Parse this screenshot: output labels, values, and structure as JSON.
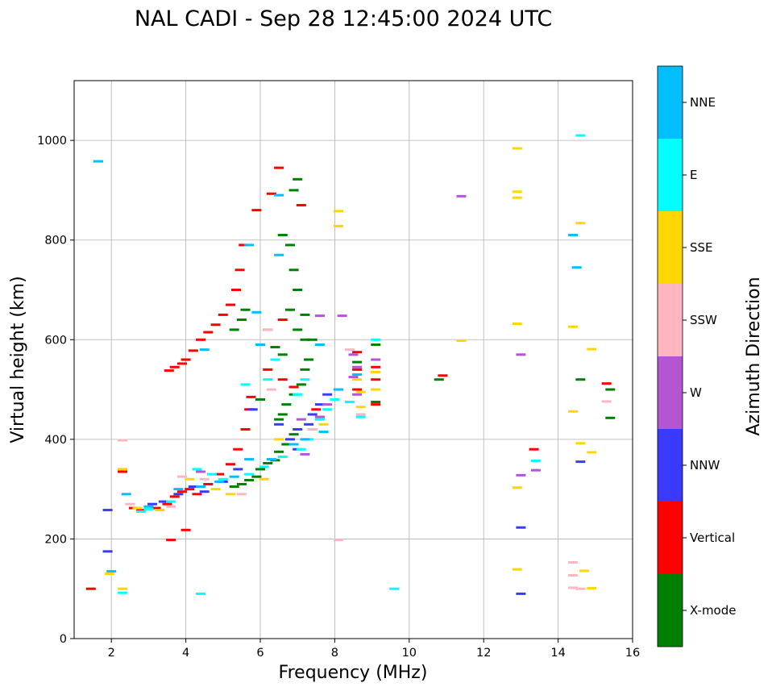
{
  "chart_data": {
    "type": "scatter",
    "title": "NAL CADI - Sep 28 12:45:00 2024 UTC",
    "xlabel": "Frequency (MHz)",
    "ylabel": "Virtual height (km)",
    "xlim": [
      1,
      16
    ],
    "ylim": [
      0,
      1120
    ],
    "xticks": [
      2,
      4,
      6,
      8,
      10,
      12,
      14,
      16
    ],
    "yticks": [
      0,
      200,
      400,
      600,
      800,
      1000
    ],
    "grid": true,
    "colorbar": {
      "label": "Azimuth Direction",
      "categories": [
        {
          "name": "X-mode",
          "color": "#008000"
        },
        {
          "name": "Vertical",
          "color": "#ff0000"
        },
        {
          "name": "NNW",
          "color": "#3a3aff"
        },
        {
          "name": "W",
          "color": "#b455d4"
        },
        {
          "name": "SSW",
          "color": "#ffb6c1"
        },
        {
          "name": "SSE",
          "color": "#ffd700"
        },
        {
          "name": "E",
          "color": "#00ffff"
        },
        {
          "name": "NNE",
          "color": "#00bfff"
        }
      ]
    },
    "series": [
      {
        "name": "Vertical",
        "points": [
          [
            1.45,
            100
          ],
          [
            2.3,
            335
          ],
          [
            2.6,
            262
          ],
          [
            2.8,
            258
          ],
          [
            3.2,
            262
          ],
          [
            3.5,
            270
          ],
          [
            3.7,
            285
          ],
          [
            3.9,
            295
          ],
          [
            4.1,
            300
          ],
          [
            4.3,
            290
          ],
          [
            4.6,
            310
          ],
          [
            4.9,
            330
          ],
          [
            5.2,
            350
          ],
          [
            5.4,
            380
          ],
          [
            5.6,
            420
          ],
          [
            5.7,
            460
          ],
          [
            5.75,
            485
          ],
          [
            3.55,
            538
          ],
          [
            3.7,
            545
          ],
          [
            3.9,
            552
          ],
          [
            4.0,
            560
          ],
          [
            4.2,
            578
          ],
          [
            4.4,
            600
          ],
          [
            4.6,
            615
          ],
          [
            4.8,
            630
          ],
          [
            5.0,
            650
          ],
          [
            5.2,
            670
          ],
          [
            5.35,
            700
          ],
          [
            5.45,
            740
          ],
          [
            5.55,
            790
          ],
          [
            5.9,
            860
          ],
          [
            6.3,
            893
          ],
          [
            6.5,
            945
          ],
          [
            6.2,
            540
          ],
          [
            6.6,
            520
          ],
          [
            6.9,
            505
          ],
          [
            6.6,
            640
          ],
          [
            7.1,
            870
          ],
          [
            7.5,
            460
          ],
          [
            8.6,
            500
          ],
          [
            8.6,
            540
          ],
          [
            8.6,
            575
          ],
          [
            9.1,
            470
          ],
          [
            9.1,
            520
          ],
          [
            9.1,
            545
          ],
          [
            10.9,
            528
          ],
          [
            13.35,
            380
          ],
          [
            15.3,
            512
          ],
          [
            4.0,
            218
          ],
          [
            3.6,
            198
          ]
        ]
      },
      {
        "name": "X-mode",
        "points": [
          [
            5.3,
            305
          ],
          [
            5.5,
            310
          ],
          [
            5.7,
            318
          ],
          [
            5.9,
            325
          ],
          [
            6.0,
            340
          ],
          [
            6.2,
            352
          ],
          [
            6.4,
            358
          ],
          [
            6.5,
            375
          ],
          [
            6.7,
            390
          ],
          [
            6.9,
            410
          ],
          [
            6.5,
            440
          ],
          [
            6.7,
            470
          ],
          [
            6.9,
            490
          ],
          [
            7.1,
            510
          ],
          [
            7.2,
            540
          ],
          [
            7.3,
            560
          ],
          [
            7.2,
            600
          ],
          [
            7.0,
            620
          ],
          [
            6.8,
            660
          ],
          [
            7.0,
            700
          ],
          [
            6.9,
            740
          ],
          [
            6.8,
            790
          ],
          [
            6.6,
            810
          ],
          [
            6.9,
            900
          ],
          [
            7.0,
            922
          ],
          [
            5.3,
            620
          ],
          [
            5.5,
            640
          ],
          [
            5.6,
            660
          ],
          [
            6.4,
            585
          ],
          [
            6.6,
            570
          ],
          [
            7.2,
            650
          ],
          [
            7.4,
            600
          ],
          [
            8.6,
            555
          ],
          [
            9.1,
            590
          ],
          [
            9.1,
            475
          ],
          [
            10.8,
            520
          ],
          [
            14.6,
            520
          ],
          [
            15.4,
            500
          ],
          [
            15.4,
            443
          ],
          [
            6.2,
            620
          ],
          [
            6.0,
            480
          ],
          [
            6.6,
            450
          ]
        ]
      },
      {
        "name": "NNW",
        "points": [
          [
            3.1,
            270
          ],
          [
            3.4,
            275
          ],
          [
            3.8,
            290
          ],
          [
            4.2,
            305
          ],
          [
            4.5,
            295
          ],
          [
            5.0,
            315
          ],
          [
            5.4,
            340
          ],
          [
            6.8,
            400
          ],
          [
            7.0,
            420
          ],
          [
            7.4,
            450
          ],
          [
            7.6,
            470
          ],
          [
            7.8,
            490
          ],
          [
            7.3,
            430
          ],
          [
            6.5,
            430
          ],
          [
            5.8,
            460
          ],
          [
            1.9,
            258
          ],
          [
            1.9,
            175
          ],
          [
            13.0,
            223
          ],
          [
            13.0,
            90
          ],
          [
            14.6,
            355
          ],
          [
            7.0,
            380
          ]
        ]
      },
      {
        "name": "W",
        "points": [
          [
            7.2,
            370
          ],
          [
            7.4,
            420
          ],
          [
            7.6,
            445
          ],
          [
            7.8,
            470
          ],
          [
            7.1,
            440
          ],
          [
            8.5,
            525
          ],
          [
            8.6,
            490
          ],
          [
            8.6,
            545
          ],
          [
            8.5,
            570
          ],
          [
            9.1,
            560
          ],
          [
            13.0,
            570
          ],
          [
            13.0,
            328
          ],
          [
            13.4,
            338
          ],
          [
            11.4,
            888
          ],
          [
            8.2,
            648
          ],
          [
            7.6,
            648
          ],
          [
            4.4,
            335
          ]
        ]
      },
      {
        "name": "SSW",
        "points": [
          [
            2.3,
            398
          ],
          [
            2.5,
            270
          ],
          [
            3.6,
            265
          ],
          [
            3.9,
            325
          ],
          [
            4.5,
            320
          ],
          [
            5.5,
            290
          ],
          [
            6.2,
            620
          ],
          [
            6.3,
            500
          ],
          [
            7.4,
            420
          ],
          [
            8.4,
            580
          ],
          [
            8.7,
            450
          ],
          [
            14.4,
            153
          ],
          [
            14.4,
            127
          ],
          [
            14.4,
            102
          ],
          [
            14.6,
            100
          ],
          [
            15.3,
            476
          ],
          [
            8.1,
            198
          ]
        ]
      },
      {
        "name": "SSE",
        "points": [
          [
            1.95,
            130
          ],
          [
            2.3,
            340
          ],
          [
            2.7,
            262
          ],
          [
            3.3,
            258
          ],
          [
            4.1,
            320
          ],
          [
            4.8,
            300
          ],
          [
            5.2,
            290
          ],
          [
            6.1,
            320
          ],
          [
            6.5,
            400
          ],
          [
            7.7,
            430
          ],
          [
            8.1,
            858
          ],
          [
            8.1,
            828
          ],
          [
            8.7,
            465
          ],
          [
            8.7,
            495
          ],
          [
            8.6,
            520
          ],
          [
            9.1,
            500
          ],
          [
            9.1,
            535
          ],
          [
            11.4,
            598
          ],
          [
            12.9,
            984
          ],
          [
            12.9,
            897
          ],
          [
            12.9,
            885
          ],
          [
            12.9,
            632
          ],
          [
            12.9,
            303
          ],
          [
            12.9,
            139
          ],
          [
            14.4,
            626
          ],
          [
            14.4,
            456
          ],
          [
            14.6,
            834
          ],
          [
            14.6,
            392
          ],
          [
            14.7,
            136
          ],
          [
            14.9,
            581
          ],
          [
            14.9,
            374
          ],
          [
            14.9,
            101
          ],
          [
            2.3,
            100
          ]
        ]
      },
      {
        "name": "E",
        "points": [
          [
            2.3,
            92
          ],
          [
            2.8,
            255
          ],
          [
            3.0,
            260
          ],
          [
            3.6,
            275
          ],
          [
            4.3,
            340
          ],
          [
            4.7,
            330
          ],
          [
            5.0,
            320
          ],
          [
            5.7,
            330
          ],
          [
            6.1,
            345
          ],
          [
            6.6,
            365
          ],
          [
            7.1,
            380
          ],
          [
            7.3,
            400
          ],
          [
            7.6,
            440
          ],
          [
            7.8,
            460
          ],
          [
            8.0,
            480
          ],
          [
            5.6,
            510
          ],
          [
            6.2,
            520
          ],
          [
            7.0,
            490
          ],
          [
            8.4,
            475
          ],
          [
            8.7,
            445
          ],
          [
            9.1,
            600
          ],
          [
            9.6,
            100
          ],
          [
            13.4,
            357
          ],
          [
            14.6,
            1010
          ],
          [
            4.4,
            90
          ],
          [
            6.4,
            560
          ],
          [
            7.2,
            520
          ]
        ]
      },
      {
        "name": "NNE",
        "points": [
          [
            1.65,
            958
          ],
          [
            2.0,
            135
          ],
          [
            2.4,
            290
          ],
          [
            3.0,
            265
          ],
          [
            3.8,
            300
          ],
          [
            4.4,
            305
          ],
          [
            4.9,
            315
          ],
          [
            5.3,
            325
          ],
          [
            5.7,
            360
          ],
          [
            6.3,
            360
          ],
          [
            6.9,
            390
          ],
          [
            7.2,
            400
          ],
          [
            7.7,
            415
          ],
          [
            5.9,
            655
          ],
          [
            6.5,
            890
          ],
          [
            6.5,
            770
          ],
          [
            5.7,
            790
          ],
          [
            7.6,
            590
          ],
          [
            8.1,
            500
          ],
          [
            8.6,
            530
          ],
          [
            14.4,
            810
          ],
          [
            14.5,
            745
          ],
          [
            6.0,
            590
          ],
          [
            4.5,
            580
          ]
        ]
      }
    ]
  }
}
